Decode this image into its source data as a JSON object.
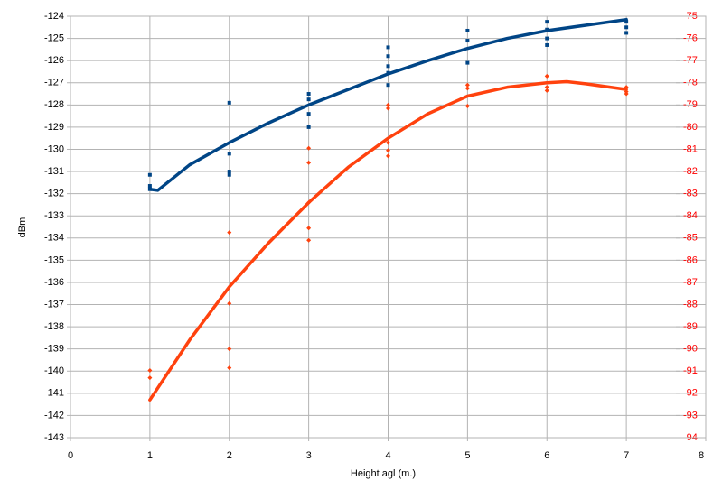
{
  "chart_data": {
    "type": "scatter",
    "x_label": "Height agl (m.)",
    "y_label": "dBm",
    "xlim": [
      0,
      8
    ],
    "xticks": [
      0,
      1,
      2,
      3,
      4,
      5,
      6,
      7,
      8
    ],
    "ylim": [
      -143,
      -124
    ],
    "yticks": [
      -124,
      -125,
      -126,
      -127,
      -128,
      -129,
      -130,
      -131,
      -132,
      -133,
      -134,
      -135,
      -136,
      -137,
      -138,
      -139,
      -140,
      -141,
      -142,
      -143
    ],
    "y2lim": [
      -94,
      -75
    ],
    "y2ticks": [
      -75,
      -76,
      -77,
      -78,
      -79,
      -80,
      -81,
      -82,
      -83,
      -84,
      -85,
      -86,
      -87,
      -88,
      -89,
      -90,
      -91,
      -92,
      -93,
      -94
    ],
    "y2_color": "#ff0000",
    "grid": true,
    "series": [
      {
        "mode": "markers",
        "marker": "square",
        "color": "#004586",
        "x": [
          1,
          1,
          1,
          2,
          2,
          2,
          2,
          3,
          3,
          3,
          3,
          4,
          4,
          4,
          4,
          4,
          5,
          5,
          5,
          6,
          6,
          6,
          6,
          7,
          7,
          7
        ],
        "values": [
          -131.15,
          -131.65,
          -131.8,
          -127.9,
          -130.2,
          -131.0,
          -131.15,
          -127.5,
          -127.75,
          -128.4,
          -129.0,
          -125.4,
          -125.8,
          -126.25,
          -126.55,
          -127.1,
          -124.65,
          -125.1,
          -126.1,
          -124.25,
          -124.6,
          -125.0,
          -125.3,
          -124.25,
          -124.5,
          -124.75
        ]
      },
      {
        "mode": "markers",
        "marker": "diamond",
        "color": "#ff420e",
        "axis": "y2",
        "x": [
          1,
          1,
          2,
          2,
          2,
          2,
          3,
          3,
          3,
          3,
          3,
          4,
          4,
          4,
          4,
          4,
          5,
          5,
          5,
          6,
          6,
          6,
          7,
          7,
          7
        ],
        "values": [
          -90.97,
          -91.3,
          -84.75,
          -87.95,
          -90.0,
          -90.85,
          -80.95,
          -81.6,
          -83.4,
          -84.55,
          -85.1,
          -79.0,
          -79.15,
          -80.7,
          -81.05,
          -81.3,
          -78.1,
          -78.25,
          -79.05,
          -77.7,
          -78.2,
          -78.35,
          -78.2,
          -78.4,
          -78.5
        ]
      },
      {
        "mode": "line",
        "color": "#004586",
        "x": [
          1,
          1.1,
          1.5,
          2,
          2.5,
          3,
          3.5,
          4,
          4.5,
          5,
          5.5,
          6,
          6.5,
          7
        ],
        "values": [
          -131.8,
          -131.85,
          -130.7,
          -129.7,
          -128.8,
          -128.0,
          -127.3,
          -126.6,
          -126.0,
          -125.45,
          -125.0,
          -124.65,
          -124.4,
          -124.15
        ]
      },
      {
        "mode": "line",
        "color": "#ff420e",
        "axis": "y2",
        "x": [
          1,
          1.5,
          2,
          2.5,
          3,
          3.5,
          4,
          4.5,
          5,
          5.5,
          6,
          6.25,
          6.5,
          7
        ],
        "values": [
          -92.3,
          -89.6,
          -87.2,
          -85.2,
          -83.4,
          -81.8,
          -80.5,
          -79.4,
          -78.6,
          -78.2,
          -78.0,
          -77.95,
          -78.05,
          -78.3
        ]
      }
    ]
  }
}
